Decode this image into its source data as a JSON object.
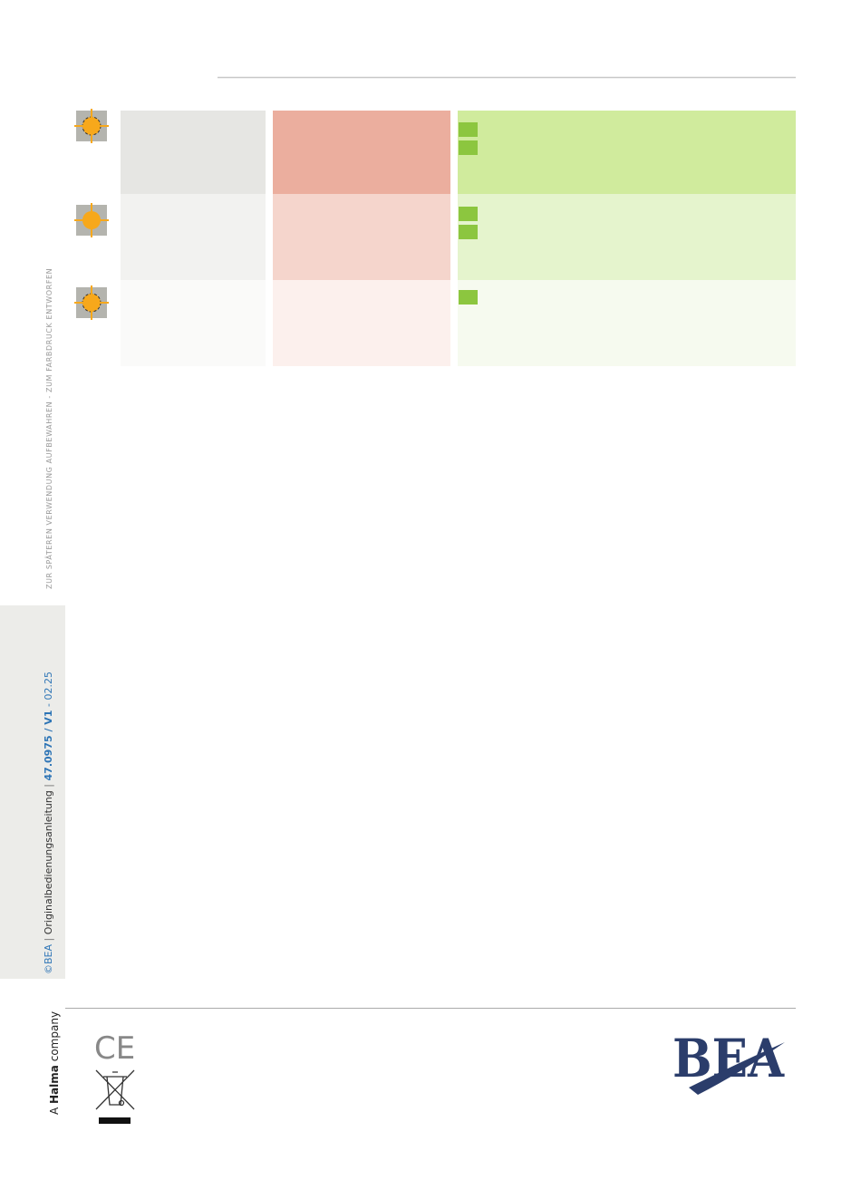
{
  "sidebar": {
    "note": "ZUR SPÄTEREN VERWENDUNG AUFBEWAHREN - ZUM FARBDRUCK ENTWORFEN",
    "copyright": "©BEA",
    "separator": "|",
    "doc_title": "Originalbedienungsanleitung",
    "doc_number": "47.0975 / V1",
    "dash": "-",
    "date": "02.25"
  },
  "footer": {
    "company_prefix": "A",
    "company_name": "Halma",
    "company_suffix": "company",
    "ce_mark": "CE",
    "logo": "BEA"
  }
}
